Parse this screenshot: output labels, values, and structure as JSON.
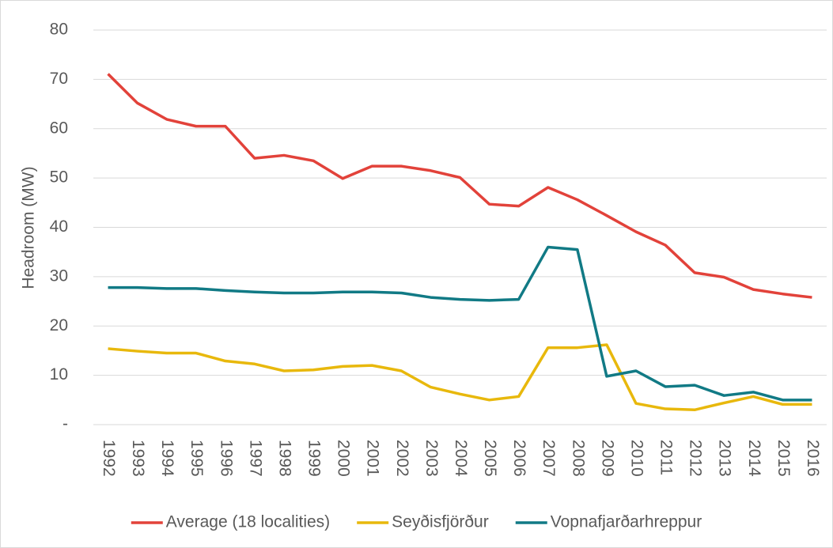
{
  "chart_data": {
    "type": "line",
    "y_label": "Headroom (MW)",
    "categories": [
      "1992",
      "1993",
      "1994",
      "1995",
      "1996",
      "1997",
      "1998",
      "1999",
      "2000",
      "2001",
      "2002",
      "2003",
      "2004",
      "2005",
      "2006",
      "2007",
      "2008",
      "2009",
      "2010",
      "2011",
      "2012",
      "2013",
      "2014",
      "2015",
      "2016"
    ],
    "series": [
      {
        "name": "Average (18 localities)",
        "color": "#e2423a",
        "values": [
          71.1,
          65.2,
          61.9,
          60.5,
          60.5,
          54.0,
          54.6,
          53.5,
          49.9,
          52.4,
          52.4,
          51.5,
          50.1,
          44.7,
          44.3,
          48.1,
          45.6,
          42.4,
          39.1,
          36.4,
          30.8,
          29.9,
          27.4,
          26.5,
          25.8
        ]
      },
      {
        "name": "Seyðisfjörður",
        "color": "#e8b80c",
        "values": [
          15.4,
          14.9,
          14.5,
          14.5,
          12.9,
          12.3,
          10.9,
          11.1,
          11.8,
          12.0,
          10.9,
          7.6,
          6.2,
          5.0,
          5.7,
          15.6,
          15.6,
          16.2,
          4.3,
          3.2,
          3.0,
          4.4,
          5.7,
          4.1,
          4.1
        ]
      },
      {
        "name": "Vopnafjarðarhreppur",
        "color": "#117a85",
        "values": [
          27.8,
          27.8,
          27.6,
          27.6,
          27.2,
          26.9,
          26.7,
          26.7,
          26.9,
          26.9,
          26.7,
          25.8,
          25.4,
          25.2,
          25.4,
          36.0,
          35.5,
          9.8,
          10.9,
          7.7,
          8.0,
          5.9,
          6.6,
          5.0,
          5.0
        ]
      }
    ],
    "ylim": [
      0,
      80
    ],
    "yticks": [
      {
        "value": 0,
        "label": "-"
      },
      10,
      20,
      30,
      40,
      50,
      60,
      70,
      80
    ],
    "grid": true
  }
}
